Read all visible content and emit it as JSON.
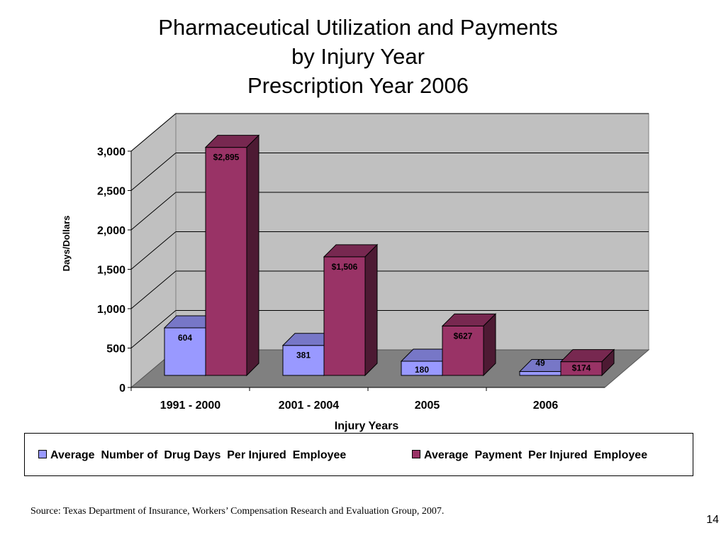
{
  "title_lines": [
    "Pharmaceutical Utilization and Payments",
    "by Injury Year",
    "Prescription Year 2006"
  ],
  "chart_data": {
    "type": "bar",
    "style": "3d-clustered-column",
    "categories": [
      "1991 - 2000",
      "2001 - 2004",
      "2005",
      "2006"
    ],
    "series": [
      {
        "name": "Average  Number of  Drug Days  Per Injured  Employee",
        "values": [
          604,
          381,
          180,
          49
        ],
        "labels": [
          "604",
          "381",
          "180",
          "49"
        ],
        "color": "#9999FF"
      },
      {
        "name": "Average  Payment  Per Injured  Employee",
        "values": [
          2895,
          1506,
          627,
          174
        ],
        "labels": [
          "$2,895",
          "$1,506",
          "$627",
          "$174"
        ],
        "color": "#993366"
      }
    ],
    "ylabel": "Days/Dollars",
    "xlabel": "Injury Years",
    "ylim": [
      0,
      3000
    ],
    "yticks": [
      0,
      500,
      1000,
      1500,
      2000,
      2500,
      3000
    ],
    "ytick_labels": [
      "0",
      "500",
      "1,000",
      "1,500",
      "2,000",
      "2,500",
      "3,000"
    ],
    "grid": true,
    "legend_position": "bottom"
  },
  "source": "Source: Texas Department of Insurance, Workers’ Compensation Research and Evaluation Group, 2007.",
  "page_number": "14"
}
